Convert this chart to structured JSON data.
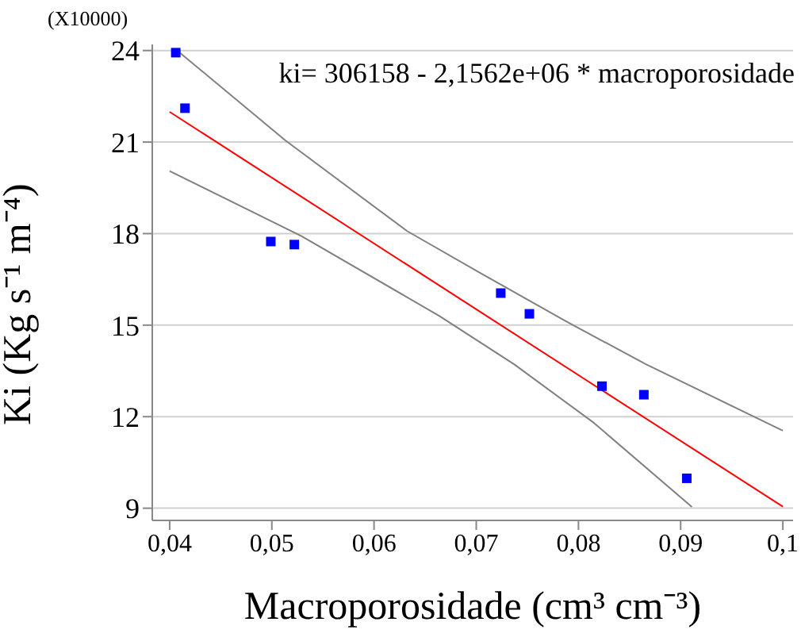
{
  "chart_data": {
    "type": "scatter",
    "xlabel": "Macroporosidade (cm³ cm⁻³)",
    "ylabel": "Ki (Kg s⁻¹ m⁻⁴)",
    "annotations": [
      "(X10000)",
      "ki= 306158 - 2,1562e+06 * macroporosidade"
    ],
    "xlim": [
      0.0383,
      0.101
    ],
    "xticks": [
      {
        "value": 0.04,
        "label": "0,04"
      },
      {
        "value": 0.05,
        "label": "0,05"
      },
      {
        "value": 0.06,
        "label": "0,06"
      },
      {
        "value": 0.07,
        "label": "0,07"
      },
      {
        "value": 0.08,
        "label": "0,08"
      },
      {
        "value": 0.09,
        "label": "0,09"
      },
      {
        "value": 0.1,
        "label": "0,1"
      }
    ],
    "ylim": [
      8.6,
      24.2
    ],
    "yticks": [
      9,
      12,
      15,
      18,
      21,
      24
    ],
    "grid": "y",
    "series": [
      {
        "type": "scatter",
        "color": "#0000ff",
        "marker": "square",
        "x": [
          0.0406,
          0.0415,
          0.0499,
          0.0522,
          0.0724,
          0.0752,
          0.0823,
          0.0864,
          0.0906
        ],
        "values": [
          23.93,
          22.11,
          17.74,
          17.64,
          16.05,
          15.37,
          13.0,
          12.72,
          9.98
        ]
      },
      {
        "type": "line",
        "color": "#ff0000",
        "marker": "none",
        "x": [
          0.04,
          0.1
        ],
        "values": [
          21.99,
          9.05
        ]
      },
      {
        "type": "line",
        "color": "#808080",
        "marker": "none",
        "x": [
          0.0406,
          0.0513,
          0.0632,
          0.0705,
          0.0788,
          0.0866,
          0.1
        ],
        "values": [
          24.04,
          21.06,
          18.09,
          16.69,
          15.12,
          13.72,
          11.54
        ]
      },
      {
        "type": "line",
        "color": "#808080",
        "marker": "none",
        "x": [
          0.04,
          0.0529,
          0.0664,
          0.0737,
          0.0815,
          0.0911
        ],
        "values": [
          20.05,
          17.92,
          15.3,
          13.72,
          11.8,
          9.04
        ]
      }
    ]
  }
}
